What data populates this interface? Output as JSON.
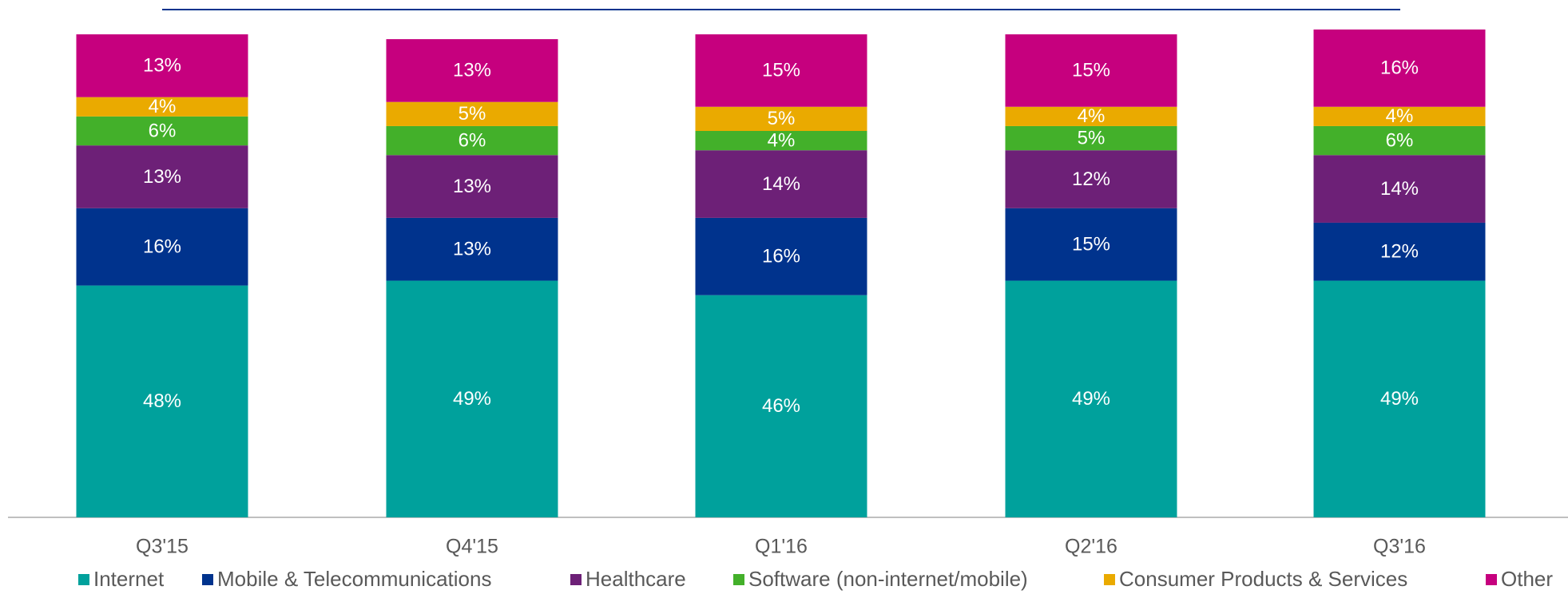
{
  "chart_data": {
    "type": "stacked_bar",
    "categories": [
      "Q3'15",
      "Q4'15",
      "Q1'16",
      "Q2'16",
      "Q3'16"
    ],
    "ylim": [
      0,
      100
    ],
    "series": [
      {
        "name": "Internet",
        "color": "#00a19c",
        "values": [
          48,
          49,
          46,
          49,
          49
        ],
        "value_labels": [
          "48%",
          "49%",
          "46%",
          "49%",
          "49%"
        ]
      },
      {
        "name": "Mobile & Telecommunications",
        "color": "#00338d",
        "values": [
          16,
          13,
          16,
          15,
          12
        ],
        "value_labels": [
          "16%",
          "13%",
          "16%",
          "15%",
          "12%"
        ]
      },
      {
        "name": "Healthcare",
        "color": "#6d2077",
        "values": [
          13,
          13,
          14,
          12,
          14
        ],
        "value_labels": [
          "13%",
          "13%",
          "14%",
          "12%",
          "14%"
        ]
      },
      {
        "name": "Software (non-internet/mobile)",
        "color": "#43b02a",
        "values": [
          6,
          6,
          4,
          5,
          6
        ],
        "value_labels": [
          "6%",
          "6%",
          "4%",
          "5%",
          "6%"
        ]
      },
      {
        "name": "Consumer Products & Services",
        "color": "#eaaa00",
        "values": [
          4,
          5,
          5,
          4,
          4
        ],
        "value_labels": [
          "4%",
          "5%",
          "5%",
          "4%",
          "4%"
        ]
      },
      {
        "name": "Other",
        "color": "#c6007e",
        "values": [
          13,
          13,
          15,
          15,
          16
        ],
        "value_labels": [
          "13%",
          "13%",
          "15%",
          "15%",
          "16%"
        ]
      }
    ]
  }
}
